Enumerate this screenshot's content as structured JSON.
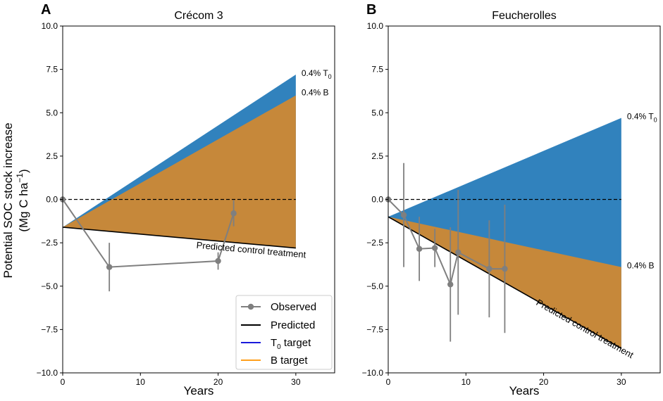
{
  "figure": {
    "ylabel_line1": "Potential SOC stock increase",
    "ylabel_line2_prefix": "(Mg C ha",
    "ylabel_line2_sup": "−1",
    "ylabel_line2_suffix": ")",
    "legend": {
      "observed": "Observed",
      "predicted": "Predicted",
      "t0_main": "T",
      "t0_sub": "0",
      "t0_rest": " target",
      "b_target": "B target"
    }
  },
  "colors": {
    "t0_fill": "#3182bd",
    "b_fill": "#c6883a",
    "t0_line": "#1a1adb",
    "b_line": "#ff9f1c",
    "observed": "#7f7f7f",
    "predicted": "#000000"
  },
  "chart_data": [
    {
      "type": "line",
      "panel_letter": "A",
      "title": "Crécom 3",
      "xlabel": "Years",
      "xlim": [
        0,
        35
      ],
      "ylim": [
        -10,
        10
      ],
      "xticks": [
        0,
        10,
        20,
        30
      ],
      "yticks": [
        10.0,
        7.5,
        5.0,
        2.5,
        0.0,
        -2.5,
        -5.0,
        -7.5,
        -10.0
      ],
      "ytick_labels": [
        "10.0",
        "7.5",
        "5.0",
        "2.5",
        "0.0",
        "−2.5",
        "−5.0",
        "−7.5",
        "−10.0"
      ],
      "reference_line_y": 0,
      "predicted": {
        "x": [
          0,
          30
        ],
        "y": [
          -1.6,
          -2.8
        ]
      },
      "t0_target": {
        "x": [
          0,
          30
        ],
        "y": [
          -1.6,
          7.2
        ]
      },
      "b_target": {
        "x": [
          0,
          30
        ],
        "y": [
          -1.6,
          6.0
        ]
      },
      "observed": [
        {
          "x": 0,
          "y": 0.0,
          "err": 0
        },
        {
          "x": 6,
          "y": -3.9,
          "err": 1.4
        },
        {
          "x": 20,
          "y": -3.55,
          "err": 0.5
        },
        {
          "x": 22,
          "y": -0.8,
          "err": 0.75
        }
      ],
      "annotations": {
        "t0_prefix": "0.4% T",
        "t0_sub": "0",
        "t0_y": 7.2,
        "b": "0.4% B",
        "b_y": 6.0,
        "predicted": "Predicted control treatment"
      }
    },
    {
      "type": "line",
      "panel_letter": "B",
      "title": "Feucherolles",
      "xlabel": "Years",
      "xlim": [
        0,
        35
      ],
      "ylim": [
        -10,
        10
      ],
      "xticks": [
        0,
        10,
        20,
        30
      ],
      "yticks": [
        10.0,
        7.5,
        5.0,
        2.5,
        0.0,
        -2.5,
        -5.0,
        -7.5,
        -10.0
      ],
      "ytick_labels": [
        "10.0",
        "7.5",
        "5.0",
        "2.5",
        "0.0",
        "−2.5",
        "−5.0",
        "−7.5",
        "−10.0"
      ],
      "reference_line_y": 0,
      "predicted": {
        "x": [
          0,
          30
        ],
        "y": [
          -1.0,
          -8.6
        ]
      },
      "t0_target": {
        "x": [
          0,
          30
        ],
        "y": [
          -1.0,
          4.7
        ]
      },
      "b_target": {
        "x": [
          0,
          30
        ],
        "y": [
          -1.0,
          -3.9
        ]
      },
      "observed": [
        {
          "x": 0,
          "y": 0.0,
          "err": 0
        },
        {
          "x": 2,
          "y": -0.9,
          "err": 3.0
        },
        {
          "x": 4,
          "y": -2.85,
          "err": 1.85
        },
        {
          "x": 6,
          "y": -2.8,
          "err": 1.1
        },
        {
          "x": 8,
          "y": -4.9,
          "err": 3.3
        },
        {
          "x": 9,
          "y": -3.05,
          "err": 3.6
        },
        {
          "x": 13,
          "y": -4.0,
          "err": 2.8
        },
        {
          "x": 15,
          "y": -4.0,
          "err": 3.7
        }
      ],
      "annotations": {
        "t0_prefix": "0.4% T",
        "t0_sub": "0",
        "t0_y": 4.7,
        "b": "0.4% B",
        "b_y": -3.9,
        "predicted": "Predicted control treatment"
      }
    }
  ]
}
